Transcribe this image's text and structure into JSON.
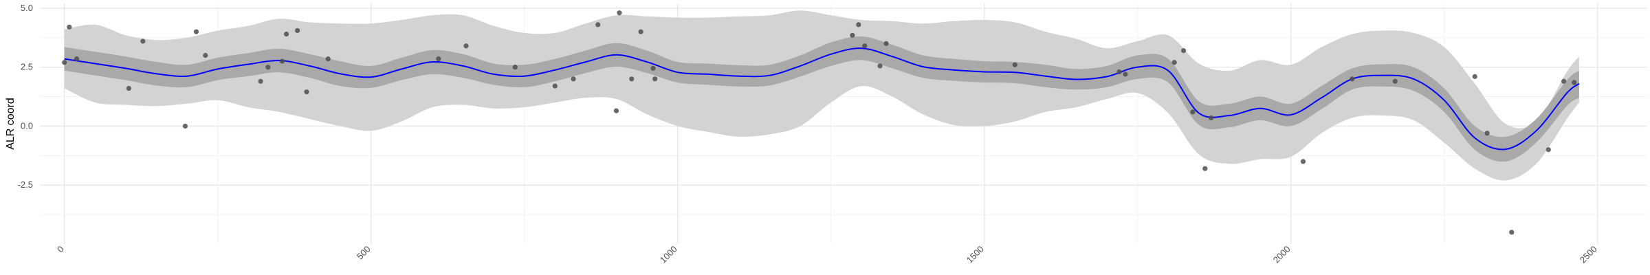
{
  "chart_data": {
    "type": "line",
    "title": "",
    "xlabel": "",
    "ylabel": "ALR coord",
    "xlim": [
      -40,
      2580
    ],
    "ylim": [
      -5.0,
      5.2
    ],
    "x_ticks": [
      0,
      500,
      1000,
      1500,
      2000,
      2500
    ],
    "x_tick_labels": [
      "0",
      "500",
      "1000",
      "1500",
      "2000",
      "2500"
    ],
    "y_ticks": [
      5.0,
      2.5,
      0.0,
      -2.5
    ],
    "y_tick_labels": [
      "5.0",
      "2.5",
      "0.0",
      "-2.5"
    ],
    "grid": true,
    "colors": {
      "trend_line": "#0000ff",
      "inner_band": "#a9a9a9",
      "outer_band": "#d3d3d3",
      "points": "#4d4d4d",
      "grid_major": "#e6e6e6",
      "grid_minor": "#f2f2f2"
    },
    "series": [
      {
        "kind": "smooth_fit",
        "x": [
          0,
          50,
          100,
          150,
          200,
          250,
          300,
          350,
          400,
          450,
          500,
          550,
          600,
          650,
          700,
          750,
          800,
          850,
          900,
          950,
          1000,
          1050,
          1100,
          1150,
          1200,
          1250,
          1300,
          1350,
          1400,
          1450,
          1500,
          1550,
          1600,
          1650,
          1700,
          1750,
          1800,
          1850,
          1900,
          1950,
          2000,
          2050,
          2100,
          2150,
          2200,
          2250,
          2300,
          2350,
          2400,
          2450,
          2470
        ],
        "y": [
          2.85,
          2.65,
          2.45,
          2.22,
          2.12,
          2.42,
          2.62,
          2.78,
          2.55,
          2.22,
          2.08,
          2.42,
          2.72,
          2.55,
          2.2,
          2.12,
          2.38,
          2.72,
          3.02,
          2.72,
          2.28,
          2.2,
          2.12,
          2.15,
          2.55,
          3.05,
          3.3,
          2.95,
          2.52,
          2.38,
          2.3,
          2.28,
          2.12,
          1.98,
          2.1,
          2.5,
          2.35,
          0.55,
          0.45,
          0.75,
          0.48,
          1.2,
          2.0,
          2.15,
          2.0,
          1.1,
          -0.5,
          -0.98,
          -0.2,
          1.4,
          1.8
        ],
        "inner_lower": [
          2.35,
          2.15,
          1.95,
          1.72,
          1.65,
          1.95,
          2.12,
          2.28,
          2.05,
          1.7,
          1.62,
          1.95,
          2.2,
          2.05,
          1.75,
          1.65,
          1.9,
          2.25,
          2.52,
          2.25,
          1.85,
          1.75,
          1.68,
          1.72,
          2.1,
          2.55,
          2.8,
          2.45,
          2.05,
          1.92,
          1.85,
          1.82,
          1.65,
          1.55,
          1.65,
          2.0,
          1.85,
          0.05,
          -0.05,
          0.25,
          0.0,
          0.72,
          1.55,
          1.68,
          1.5,
          0.6,
          -1.0,
          -1.5,
          -0.7,
          0.85,
          1.2
        ],
        "inner_upper": [
          3.35,
          3.15,
          2.95,
          2.72,
          2.6,
          2.9,
          3.1,
          3.28,
          3.05,
          2.75,
          2.55,
          2.9,
          3.22,
          3.05,
          2.65,
          2.6,
          2.85,
          3.2,
          3.52,
          3.2,
          2.72,
          2.65,
          2.58,
          2.6,
          3.0,
          3.55,
          3.8,
          3.45,
          3.0,
          2.85,
          2.75,
          2.72,
          2.6,
          2.42,
          2.55,
          3.0,
          2.85,
          1.05,
          0.95,
          1.25,
          0.95,
          1.7,
          2.45,
          2.62,
          2.5,
          1.6,
          0.0,
          -0.45,
          0.3,
          1.95,
          2.35
        ],
        "outer_lower": [
          1.6,
          1.0,
          0.9,
          0.85,
          0.95,
          1.1,
          0.8,
          0.6,
          0.3,
          0.0,
          -0.2,
          0.2,
          0.8,
          0.9,
          0.75,
          0.8,
          1.0,
          1.2,
          1.15,
          0.5,
          0.0,
          -0.25,
          -0.45,
          -0.35,
          0.0,
          1.0,
          1.7,
          1.25,
          0.5,
          0.05,
          0.0,
          0.2,
          0.6,
          0.8,
          1.15,
          1.4,
          0.55,
          -1.2,
          -1.6,
          -1.4,
          -1.3,
          -0.3,
          0.35,
          0.45,
          0.25,
          -0.7,
          -1.8,
          -2.3,
          -1.6,
          0.3,
          1.0
        ],
        "outer_upper": [
          4.1,
          4.3,
          3.85,
          3.65,
          3.75,
          4.05,
          4.25,
          4.55,
          4.4,
          4.35,
          4.35,
          4.5,
          4.7,
          4.7,
          4.25,
          3.95,
          3.95,
          4.35,
          4.7,
          4.65,
          4.6,
          4.6,
          4.65,
          4.7,
          4.9,
          4.7,
          4.5,
          4.45,
          4.35,
          4.45,
          4.5,
          4.4,
          4.0,
          3.7,
          3.3,
          3.6,
          3.85,
          2.65,
          2.35,
          2.8,
          2.6,
          3.35,
          3.9,
          4.05,
          3.95,
          3.35,
          1.8,
          0.1,
          0.2,
          2.3,
          2.95
        ]
      },
      {
        "kind": "observations",
        "x": [
          0,
          8,
          20,
          105,
          128,
          197,
          215,
          230,
          320,
          332,
          355,
          362,
          380,
          395,
          430,
          610,
          655,
          735,
          800,
          830,
          870,
          900,
          905,
          925,
          940,
          960,
          963,
          1285,
          1295,
          1305,
          1330,
          1340,
          1550,
          1720,
          1730,
          1810,
          1825,
          1840,
          1860,
          1870,
          2020,
          2100,
          2170,
          2300,
          2320,
          2360,
          2420,
          2445,
          2462
        ],
        "y": [
          2.7,
          4.2,
          2.85,
          1.6,
          3.6,
          0.0,
          4.0,
          3.0,
          1.9,
          2.5,
          2.75,
          3.9,
          4.05,
          1.45,
          2.85,
          2.85,
          3.4,
          2.5,
          1.7,
          2.0,
          4.3,
          0.65,
          4.8,
          2.0,
          4.0,
          2.45,
          2.0,
          3.85,
          4.3,
          3.4,
          2.55,
          3.5,
          2.6,
          2.3,
          2.2,
          2.7,
          3.2,
          0.6,
          -1.8,
          0.35,
          -1.5,
          2.0,
          1.9,
          2.1,
          -0.3,
          -4.5,
          -1.0,
          1.9,
          1.85
        ]
      }
    ]
  }
}
